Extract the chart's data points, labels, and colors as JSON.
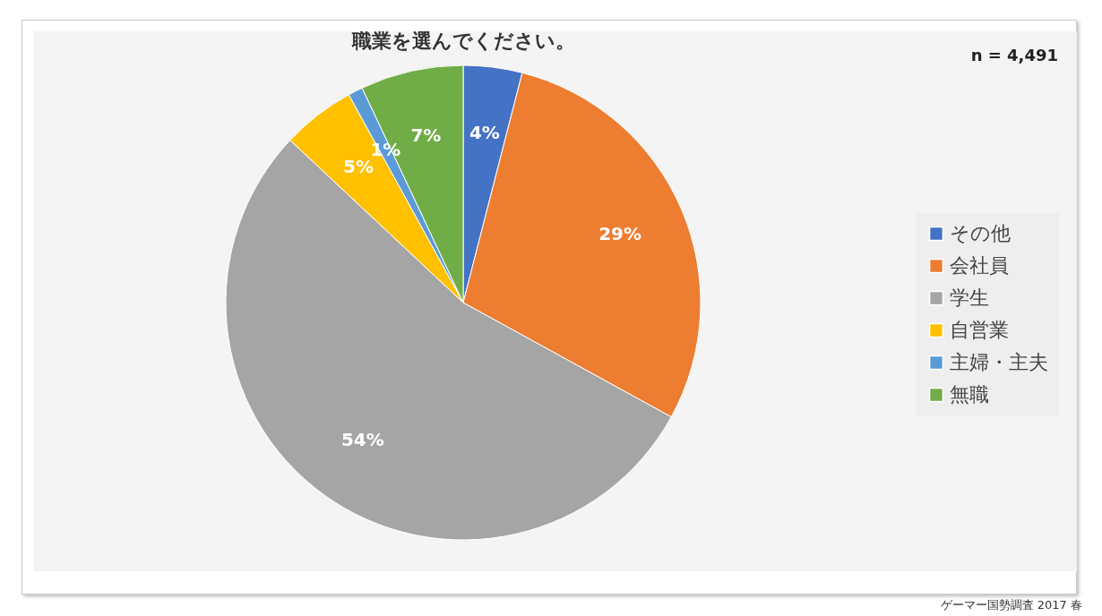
{
  "chart_data": {
    "type": "pie",
    "title": "職業を選んでください。",
    "categories": [
      "その他",
      "会社員",
      "学生",
      "自営業",
      "主婦・主夫",
      "無職"
    ],
    "values": [
      4,
      29,
      54,
      5,
      1,
      7
    ],
    "colors": [
      "#4472c4",
      "#ed7d31",
      "#a5a5a5",
      "#ffc000",
      "#5b9bd5",
      "#70ad47"
    ],
    "value_labels": [
      "4%",
      "29%",
      "54%",
      "5%",
      "1%",
      "7%"
    ],
    "legend": "right",
    "annotations": [
      "n = 4,491",
      "ゲーマー国勢調査 2017 春"
    ]
  }
}
